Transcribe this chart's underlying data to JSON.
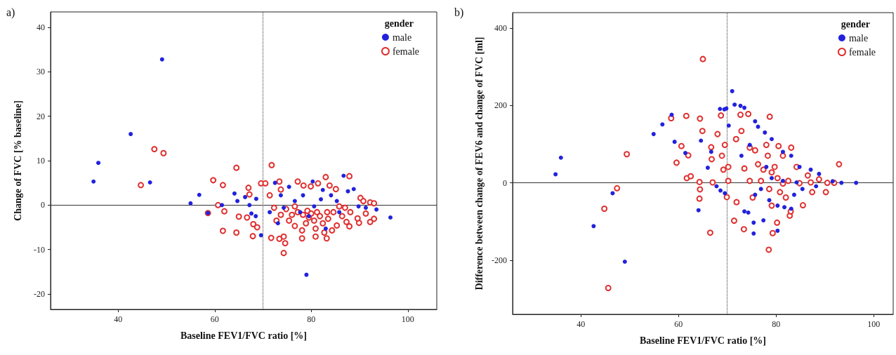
{
  "chart_data": [
    {
      "type": "scatter",
      "title": "a)",
      "xlabel": "Baseline FEV1/FVC ratio [%]",
      "ylabel": "Change of FVC [% baseline]",
      "legend_title": "gender",
      "legend": "top right",
      "grid": false,
      "marker": "circle",
      "xlim": [
        26,
        106
      ],
      "xticks": [
        40,
        60,
        80,
        100
      ],
      "ylim": [
        -23.5,
        43.5
      ],
      "yticks": [
        -20,
        -10,
        0,
        10,
        20,
        30,
        40
      ],
      "ref_lines": [
        {
          "axis": "x",
          "value": 70,
          "color": "#333333",
          "line_style": "dotted"
        },
        {
          "axis": "y",
          "value": 0,
          "color": "#333333",
          "line_style": "solid"
        }
      ],
      "series": [
        {
          "name": "male",
          "color": "#2222dd",
          "x": [
            34.9,
            35.9,
            42.6,
            46.6,
            49.1,
            55.0,
            56.8,
            58.6,
            61.5,
            64.1,
            64.7,
            66.3,
            67.2,
            67.6,
            68.5,
            68.6,
            69.6,
            72.5,
            73.7,
            75.4,
            79.0,
            80.3,
            82.4,
            86.7,
            87.6,
            88.8,
            89.8,
            91.3,
            93.5,
            96.4,
            83.0,
            77.7,
            76.6,
            80.6,
            71.4,
            73.1,
            84.1,
            85.3,
            74.3,
            82.0,
            79.5,
            85.8,
            78.3
          ],
          "values": [
            5.3,
            9.5,
            16.0,
            5.1,
            32.8,
            0.4,
            2.3,
            -1.8,
            0,
            2.6,
            0.9,
            1.8,
            0,
            -1.9,
            -2.5,
            1.4,
            -6.8,
            5.0,
            2.2,
            4.1,
            -15.7,
            5.3,
            3.4,
            6.6,
            3.1,
            3.6,
            -0.3,
            -0.6,
            -1.0,
            -2.8,
            -5.3,
            -1.6,
            0.9,
            -0.3,
            -1.6,
            -4.1,
            2.2,
            0.9,
            -0.6,
            1.3,
            -2.5,
            -1.6,
            2.2
          ]
        },
        {
          "name": "female",
          "color": "#e03030",
          "x": [
            47.5,
            49.4,
            44.7,
            64.5,
            59.7,
            61.7,
            60.7,
            58.6,
            62.0,
            61.7,
            64.5,
            65.0,
            66.7,
            67.0,
            67.2,
            67.9,
            68.0,
            68.8,
            69.6,
            70.5,
            71.8,
            71.7,
            73.4,
            74.3,
            74.3,
            74.6,
            73.4,
            73.7,
            71.4,
            77.2,
            78.1,
            78.1,
            78.4,
            79.9,
            80.9,
            80.9,
            81.4,
            83.0,
            83.2,
            82.7,
            83.8,
            84.3,
            85.1,
            85.3,
            87.9,
            87.9,
            87.3,
            90.2,
            90.8,
            91.3,
            92.2,
            93.0,
            93.0,
            92.2,
            89.9,
            89.6,
            88.1,
            85.8,
            76.6,
            77.2,
            78.3,
            79.2,
            79.5,
            80.0,
            80.6,
            81.2,
            81.8,
            82.4,
            83.3,
            83.5,
            75.4,
            76.0,
            74.8,
            73.7,
            72.8,
            72.3,
            76.6,
            78.9,
            84.6,
            86.4,
            87.0
          ],
          "values": [
            12.6,
            11.7,
            4.5,
            8.4,
            5.6,
            4.5,
            0,
            -1.8,
            -1.4,
            -5.8,
            -6.2,
            -2.6,
            -2.8,
            3.9,
            2.4,
            -7.0,
            -4.3,
            -5.0,
            4.9,
            4.9,
            9.0,
            -7.4,
            -7.6,
            -7.1,
            -10.8,
            -8.6,
            5.3,
            3.5,
            2.2,
            5.3,
            -7.5,
            -5.7,
            4.4,
            4.2,
            -7.1,
            -5.3,
            4.9,
            6.3,
            -7.5,
            -6.2,
            4.4,
            -5.7,
            3.6,
            -4.6,
            6.5,
            -4.8,
            -3.8,
            1.6,
            0.9,
            -1.9,
            0.6,
            0.4,
            -3.1,
            -3.8,
            -4.0,
            -3.0,
            -1.6,
            -0.3,
            -0.3,
            -1.6,
            -2.2,
            -1.3,
            -2.8,
            -1.9,
            -3.5,
            -1.6,
            -2.5,
            -4.1,
            -1.6,
            -3.1,
            -3.5,
            -2.2,
            -0.9,
            -2.2,
            -3.5,
            -0.6,
            -4.7,
            -4.1,
            -1.6,
            -2.5,
            -0.6
          ]
        }
      ]
    },
    {
      "type": "scatter",
      "title": "b)",
      "xlabel": "Baseline FEV1/FVC ratio [%]",
      "ylabel": "Difference between change of FEV6 and change of FVC [ml]",
      "legend_title": "gender",
      "legend": "top right",
      "grid": false,
      "marker": "circle",
      "xlim": [
        26,
        104
      ],
      "xticks": [
        40,
        60,
        80,
        100
      ],
      "ylim": [
        -340,
        440
      ],
      "yticks": [
        -200,
        0,
        200,
        400
      ],
      "ref_lines": [
        {
          "axis": "x",
          "value": 70,
          "color": "#333333",
          "line_style": "dotted"
        },
        {
          "axis": "y",
          "value": 0,
          "color": "#333333",
          "line_style": "solid"
        }
      ],
      "series": [
        {
          "name": "male",
          "color": "#2222dd",
          "x": [
            34.8,
            35.9,
            42.6,
            46.5,
            49.0,
            54.9,
            56.7,
            58.6,
            59.2,
            61.4,
            64.1,
            64.6,
            66.0,
            66.7,
            68.5,
            69.4,
            69.8,
            71.0,
            71.5,
            72.7,
            73.5,
            67.8,
            68.6,
            69.5,
            70.3,
            73.5,
            74.3,
            75.4,
            75.4,
            77.4,
            80.3,
            75.7,
            76.3,
            77.7,
            79.1,
            81.4,
            83.1,
            84.8,
            87.1,
            88.8,
            91.6,
            93.4,
            96.4,
            80.3,
            81.7,
            83.1,
            78.6,
            75.7,
            76.9,
            83.7,
            85.4,
            88.2,
            72.9,
            74.6,
            78.0,
            79.1,
            81.4,
            84.2
          ],
          "values": [
            22,
            65,
            -112,
            -27,
            -204,
            126,
            151,
            176,
            106,
            77,
            -71,
            109,
            39,
            80,
            191,
            190,
            192,
            237,
            202,
            199,
            194,
            -9,
            -20,
            -27,
            148,
            -74,
            -77,
            -103,
            -131,
            -97,
            -124,
            159,
            145,
            130,
            113,
            80,
            70,
            41,
            34,
            23,
            4,
            0,
            0,
            -59,
            -63,
            -67,
            -45,
            -31,
            -16,
            -31,
            -16,
            -9,
            70,
            98,
            41,
            12,
            5,
            1
          ]
        },
        {
          "name": "female",
          "color": "#e03030",
          "x": [
            65.0,
            45.6,
            44.8,
            47.4,
            49.4,
            58.5,
            59.6,
            60.6,
            61.6,
            62.0,
            61.7,
            62.5,
            64.3,
            64.4,
            64.3,
            64.4,
            64.9,
            66.5,
            66.7,
            66.8,
            67.0,
            68.0,
            68.7,
            69.9,
            71.4,
            71.9,
            72.7,
            73.4,
            74.3,
            78.7,
            78.5,
            79.3,
            80.2,
            82.8,
            83.0,
            85.5,
            87.4,
            90.2,
            92.9,
            91.9,
            90.5,
            88.8,
            86.5,
            84.2,
            81.4,
            83.1,
            80.5,
            78.0,
            75.7,
            74.6,
            72.9,
            71.8,
            69.5,
            68.9,
            69.2,
            70.2,
            73.5,
            76.3,
            79.1,
            80.3,
            81.4,
            82.5,
            84.8,
            87.1,
            77.4,
            79.7,
            76.9,
            74.6,
            78.6,
            80.8,
            82.0,
            79.1,
            75.2,
            78.3,
            70.2
          ],
          "values": [
            320,
            -272,
            -67,
            -14,
            74,
            167,
            52,
            95,
            173,
            71,
            12,
            17,
            2,
            -17,
            -41,
            166,
            134,
            -129,
            92,
            61,
            1,
            126,
            174,
            -37,
            -98,
            -50,
            176,
            -120,
            178,
            171,
            -173,
            -130,
            -103,
            -85,
            -74,
            -58,
            -24,
            -24,
            48,
            0,
            0,
            9,
            19,
            41,
            70,
            91,
            95,
            98,
            84,
            91,
            134,
            113,
            98,
            70,
            34,
            41,
            37,
            48,
            27,
            12,
            -2,
            5,
            -1,
            1,
            34,
            41,
            5,
            5,
            -16,
            -24,
            -38,
            -59,
            -38,
            70,
            5
          ]
        }
      ]
    }
  ]
}
